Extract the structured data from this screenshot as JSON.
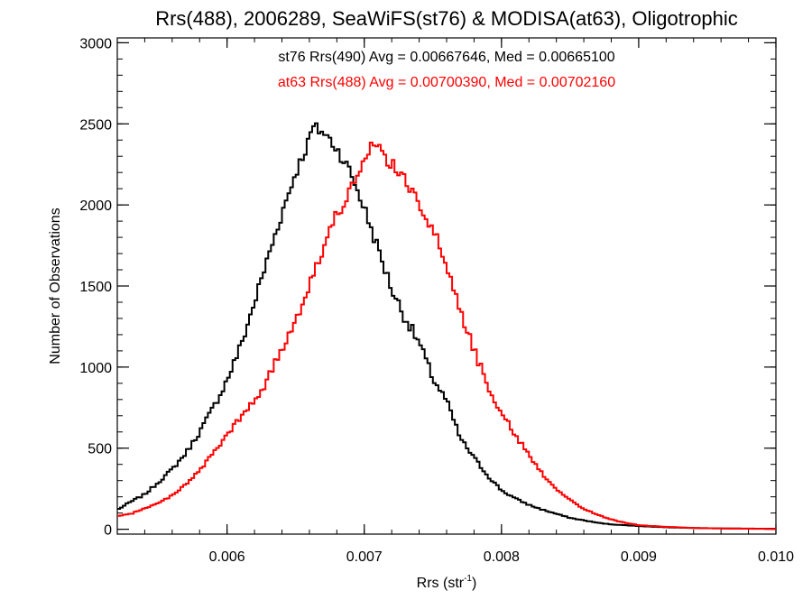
{
  "chart_data": {
    "type": "histogram",
    "title": "Rrs(488), 2006289, SeaWiFS(st76) & MODISA(at63), Oligotrophic",
    "xlabel": "Rrs (str",
    "xlabel_sup": "-1",
    "xlabel_close": ")",
    "ylabel": "Number of Observations",
    "xlim": [
      0.0052,
      0.01
    ],
    "ylim": [
      -30,
      3030
    ],
    "x_ticks": [
      {
        "value": 0.006,
        "label": "0.006"
      },
      {
        "value": 0.007,
        "label": "0.007"
      },
      {
        "value": 0.008,
        "label": "0.008"
      },
      {
        "value": 0.009,
        "label": "0.009"
      },
      {
        "value": 0.01,
        "label": "0.010"
      }
    ],
    "y_ticks": [
      {
        "value": 0,
        "label": "0"
      },
      {
        "value": 500,
        "label": "500"
      },
      {
        "value": 1000,
        "label": "1000"
      },
      {
        "value": 1500,
        "label": "1500"
      },
      {
        "value": 2000,
        "label": "2000"
      },
      {
        "value": 2500,
        "label": "2500"
      },
      {
        "value": 3000,
        "label": "3000"
      }
    ],
    "x_minor_step": 0.0002,
    "y_minor_step": 100,
    "series": [
      {
        "name": "st76 Rrs(490)",
        "legend": "st76 Rrs(490) Avg = 0.00667646, Med = 0.00665100",
        "color": "#000000",
        "bin_width": 2e-05,
        "points": [
          [
            0.0052,
            120
          ],
          [
            0.0053,
            170
          ],
          [
            0.0054,
            215
          ],
          [
            0.0055,
            290
          ],
          [
            0.0056,
            370
          ],
          [
            0.0057,
            470
          ],
          [
            0.0058,
            600
          ],
          [
            0.0059,
            750
          ],
          [
            0.006,
            920
          ],
          [
            0.0061,
            1130
          ],
          [
            0.0062,
            1400
          ],
          [
            0.0063,
            1680
          ],
          [
            0.0064,
            1950
          ],
          [
            0.0065,
            2200
          ],
          [
            0.0066,
            2400
          ],
          [
            0.00662,
            2480
          ],
          [
            0.0067,
            2450
          ],
          [
            0.0068,
            2350
          ],
          [
            0.0069,
            2200
          ],
          [
            0.007,
            1980
          ],
          [
            0.0071,
            1730
          ],
          [
            0.0072,
            1480
          ],
          [
            0.0073,
            1300
          ],
          [
            0.0074,
            1150
          ],
          [
            0.0075,
            930
          ],
          [
            0.0076,
            790
          ],
          [
            0.0077,
            560
          ],
          [
            0.0078,
            440
          ],
          [
            0.0079,
            330
          ],
          [
            0.008,
            240
          ],
          [
            0.0081,
            190
          ],
          [
            0.0082,
            150
          ],
          [
            0.0083,
            120
          ],
          [
            0.0084,
            95
          ],
          [
            0.0085,
            70
          ],
          [
            0.0086,
            55
          ],
          [
            0.0087,
            40
          ],
          [
            0.0088,
            30
          ],
          [
            0.009,
            20
          ],
          [
            0.0092,
            12
          ],
          [
            0.0094,
            8
          ],
          [
            0.0096,
            5
          ],
          [
            0.0098,
            4
          ],
          [
            0.01,
            3
          ]
        ]
      },
      {
        "name": "at63 Rrs(488)",
        "legend": "at63 Rrs(488) Avg = 0.00700390, Med = 0.00702160",
        "color": "#ff0000",
        "bin_width": 2e-05,
        "points": [
          [
            0.0052,
            80
          ],
          [
            0.0053,
            95
          ],
          [
            0.0054,
            130
          ],
          [
            0.0055,
            160
          ],
          [
            0.0056,
            210
          ],
          [
            0.0057,
            280
          ],
          [
            0.0058,
            360
          ],
          [
            0.0059,
            470
          ],
          [
            0.006,
            580
          ],
          [
            0.0061,
            690
          ],
          [
            0.0062,
            790
          ],
          [
            0.0063,
            930
          ],
          [
            0.0064,
            1110
          ],
          [
            0.0065,
            1300
          ],
          [
            0.0066,
            1510
          ],
          [
            0.0067,
            1730
          ],
          [
            0.0068,
            1940
          ],
          [
            0.0069,
            2100
          ],
          [
            0.007,
            2250
          ],
          [
            0.00705,
            2350
          ],
          [
            0.0071,
            2350
          ],
          [
            0.0072,
            2250
          ],
          [
            0.0073,
            2140
          ],
          [
            0.0074,
            2020
          ],
          [
            0.0075,
            1850
          ],
          [
            0.0076,
            1620
          ],
          [
            0.0077,
            1360
          ],
          [
            0.0078,
            1100
          ],
          [
            0.0079,
            890
          ],
          [
            0.008,
            720
          ],
          [
            0.0081,
            580
          ],
          [
            0.0082,
            460
          ],
          [
            0.0083,
            340
          ],
          [
            0.0084,
            250
          ],
          [
            0.0085,
            180
          ],
          [
            0.0086,
            125
          ],
          [
            0.0087,
            90
          ],
          [
            0.0088,
            60
          ],
          [
            0.0089,
            40
          ],
          [
            0.009,
            25
          ],
          [
            0.0092,
            15
          ],
          [
            0.0094,
            8
          ],
          [
            0.0096,
            5
          ],
          [
            0.0098,
            3
          ],
          [
            0.01,
            2
          ]
        ]
      }
    ]
  }
}
